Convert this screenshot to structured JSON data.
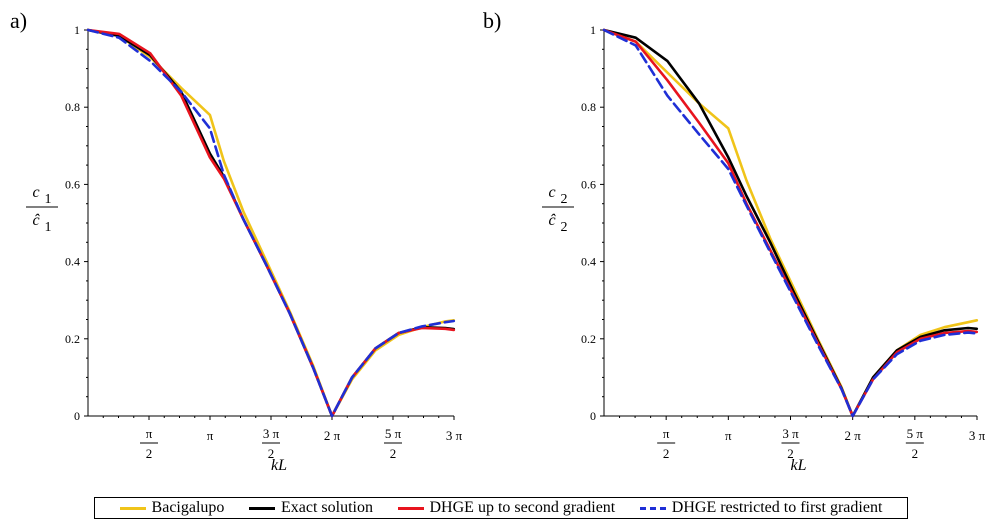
{
  "chart_data": [
    {
      "panel_label": "a)",
      "type": "line",
      "ylabel_num": "c",
      "ylabel_num_sub": "1",
      "ylabel_den": "ĉ",
      "ylabel_den_sub": "1",
      "xlabel": "kL",
      "xlim": [
        0,
        9.4248
      ],
      "ylim": [
        0,
        1
      ],
      "yticks": [
        0,
        0.2,
        0.4,
        0.6,
        0.8,
        1
      ],
      "ytick_labels": [
        "0",
        "0.2",
        "0.4",
        "0.6",
        "0.8",
        "1"
      ],
      "xticks": [
        {
          "x": 1.5708,
          "num": "π",
          "den": "2"
        },
        {
          "x": 3.1416,
          "text": "π"
        },
        {
          "x": 4.7124,
          "num": "3 π",
          "den": "2"
        },
        {
          "x": 6.2832,
          "text": "2 π"
        },
        {
          "x": 7.854,
          "num": "5 π",
          "den": "2"
        },
        {
          "x": 9.4248,
          "text": "3 π"
        }
      ],
      "series": [
        {
          "name": "Bacigalupo",
          "color": "#f0c419",
          "dash": false,
          "x": [
            0,
            0.8,
            1.6,
            2.4,
            3.14,
            3.5,
            4.0,
            4.6,
            5.2,
            5.8,
            6.283,
            6.8,
            7.4,
            8.0,
            8.6,
            9.2,
            9.42
          ],
          "y": [
            1.0,
            0.985,
            0.93,
            0.85,
            0.78,
            0.66,
            0.53,
            0.4,
            0.27,
            0.13,
            0.0,
            0.095,
            0.17,
            0.21,
            0.23,
            0.245,
            0.248
          ]
        },
        {
          "name": "Exact solution",
          "color": "#000000",
          "dash": false,
          "x": [
            0,
            0.8,
            1.6,
            2.4,
            3.14,
            3.5,
            4.0,
            4.6,
            5.2,
            5.8,
            6.283,
            6.8,
            7.4,
            8.0,
            8.6,
            9.2,
            9.42
          ],
          "y": [
            1.0,
            0.985,
            0.935,
            0.84,
            0.68,
            0.62,
            0.51,
            0.39,
            0.265,
            0.125,
            0.0,
            0.1,
            0.175,
            0.215,
            0.23,
            0.228,
            0.225
          ]
        },
        {
          "name": "DHGE up to second gradient",
          "color": "#e8141e",
          "dash": false,
          "x": [
            0,
            0.8,
            1.6,
            2.4,
            3.14,
            3.5,
            4.0,
            4.6,
            5.2,
            5.8,
            6.283,
            6.8,
            7.4,
            8.0,
            8.6,
            9.2,
            9.42
          ],
          "y": [
            1.0,
            0.99,
            0.94,
            0.83,
            0.67,
            0.615,
            0.51,
            0.39,
            0.265,
            0.125,
            0.0,
            0.1,
            0.175,
            0.215,
            0.228,
            0.226,
            0.223
          ]
        },
        {
          "name": "DHGE restricted to first gradient",
          "color": "#1f2fd6",
          "dash": true,
          "x": [
            0,
            0.8,
            1.6,
            2.4,
            3.14,
            3.5,
            4.0,
            4.6,
            5.2,
            5.8,
            6.283,
            6.8,
            7.4,
            8.0,
            8.6,
            9.2,
            9.42
          ],
          "y": [
            1.0,
            0.98,
            0.92,
            0.84,
            0.745,
            0.625,
            0.51,
            0.39,
            0.265,
            0.125,
            0.0,
            0.1,
            0.175,
            0.215,
            0.232,
            0.243,
            0.246
          ]
        }
      ]
    },
    {
      "panel_label": "b)",
      "type": "line",
      "ylabel_num": "c",
      "ylabel_num_sub": "2",
      "ylabel_den": "ĉ",
      "ylabel_den_sub": "2",
      "xlabel": "kL",
      "xlim": [
        0,
        9.4248
      ],
      "ylim": [
        0,
        1
      ],
      "yticks": [
        0,
        0.2,
        0.4,
        0.6,
        0.8,
        1
      ],
      "ytick_labels": [
        "0",
        "0.2",
        "0.4",
        "0.6",
        "0.8",
        "1"
      ],
      "xticks": [
        {
          "x": 1.5708,
          "num": "π",
          "den": "2"
        },
        {
          "x": 3.1416,
          "text": "π"
        },
        {
          "x": 4.7124,
          "num": "3 π",
          "den": "2"
        },
        {
          "x": 6.2832,
          "text": "2 π"
        },
        {
          "x": 7.854,
          "num": "5 π",
          "den": "2"
        },
        {
          "x": 9.4248,
          "text": "3 π"
        }
      ],
      "series": [
        {
          "name": "Bacigalupo",
          "color": "#f0c419",
          "dash": false,
          "x": [
            0,
            0.8,
            1.6,
            2.4,
            3.14,
            3.6,
            4.2,
            4.8,
            5.4,
            6.0,
            6.283,
            6.8,
            7.4,
            8.0,
            8.6,
            9.2,
            9.42
          ],
          "y": [
            1.0,
            0.97,
            0.89,
            0.81,
            0.745,
            0.61,
            0.46,
            0.33,
            0.2,
            0.075,
            0.0,
            0.1,
            0.17,
            0.21,
            0.23,
            0.243,
            0.248
          ]
        },
        {
          "name": "Exact solution",
          "color": "#000000",
          "dash": false,
          "x": [
            0,
            0.8,
            1.6,
            2.4,
            3.14,
            3.6,
            4.2,
            4.8,
            5.4,
            6.0,
            6.283,
            6.8,
            7.4,
            8.0,
            8.6,
            9.2,
            9.42
          ],
          "y": [
            1.0,
            0.98,
            0.92,
            0.81,
            0.67,
            0.57,
            0.45,
            0.32,
            0.195,
            0.072,
            0.0,
            0.1,
            0.17,
            0.205,
            0.222,
            0.228,
            0.226
          ]
        },
        {
          "name": "DHGE up to second gradient",
          "color": "#e8141e",
          "dash": false,
          "x": [
            0,
            0.8,
            1.6,
            2.4,
            3.14,
            3.6,
            4.2,
            4.8,
            5.4,
            6.0,
            6.283,
            6.8,
            7.4,
            8.0,
            8.6,
            9.2,
            9.42
          ],
          "y": [
            1.0,
            0.97,
            0.87,
            0.76,
            0.655,
            0.55,
            0.43,
            0.31,
            0.19,
            0.07,
            0.0,
            0.095,
            0.165,
            0.2,
            0.215,
            0.22,
            0.218
          ]
        },
        {
          "name": "DHGE restricted to first gradient",
          "color": "#1f2fd6",
          "dash": true,
          "x": [
            0,
            0.8,
            1.6,
            2.4,
            3.14,
            3.6,
            4.2,
            4.8,
            5.4,
            6.0,
            6.283,
            6.8,
            7.4,
            8.0,
            8.6,
            9.2,
            9.42
          ],
          "y": [
            1.0,
            0.96,
            0.83,
            0.73,
            0.64,
            0.545,
            0.425,
            0.305,
            0.185,
            0.07,
            0.0,
            0.095,
            0.16,
            0.195,
            0.21,
            0.216,
            0.214
          ]
        }
      ]
    }
  ],
  "legend": [
    {
      "name": "Bacigalupo",
      "color": "#f0c419",
      "dash": false
    },
    {
      "name": "Exact solution",
      "color": "#000000",
      "dash": false
    },
    {
      "name": "DHGE up to second gradient",
      "color": "#e8141e",
      "dash": false
    },
    {
      "name": "DHGE restricted to first gradient",
      "color": "#1f2fd6",
      "dash": true
    }
  ]
}
